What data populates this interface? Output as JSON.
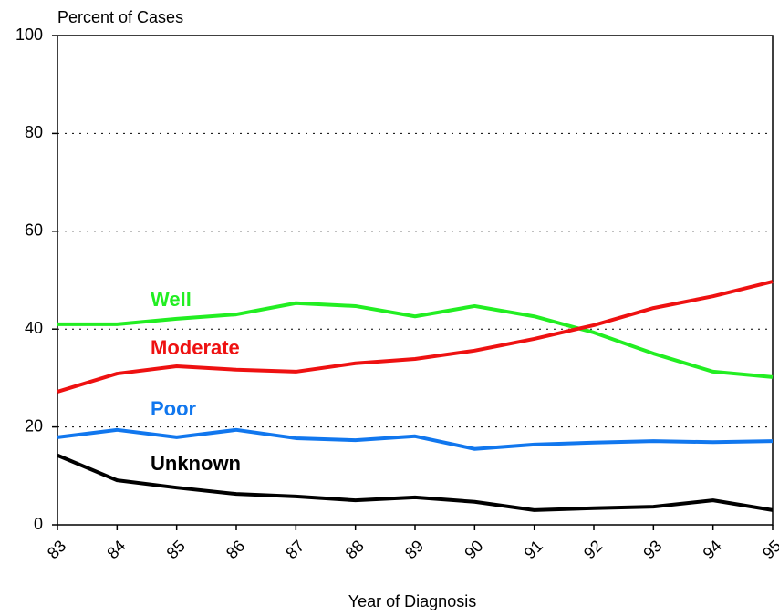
{
  "chart_data": {
    "type": "line",
    "y_axis_label": "Percent of Cases",
    "x_axis_label": "Year of Diagnosis",
    "categories": [
      "83",
      "84",
      "85",
      "86",
      "87",
      "88",
      "89",
      "90",
      "91",
      "92",
      "93",
      "94",
      "95"
    ],
    "series": [
      {
        "name": "Well",
        "color": "#22ee22",
        "values": [
          41,
          41,
          42.1,
          43,
          45.3,
          44.7,
          42.6,
          44.7,
          42.6,
          39.3,
          35,
          31.3,
          30.2
        ]
      },
      {
        "name": "Moderate",
        "color": "#ee1111",
        "values": [
          27.2,
          30.9,
          32.4,
          31.7,
          31.3,
          33,
          33.9,
          35.6,
          38,
          40.8,
          44.3,
          46.7,
          49.7
        ]
      },
      {
        "name": "Poor",
        "color": "#1177ee",
        "values": [
          17.9,
          19.4,
          17.9,
          19.4,
          17.7,
          17.3,
          18.1,
          15.5,
          16.4,
          16.8,
          17.1,
          16.9,
          17.1
        ]
      },
      {
        "name": "Unknown",
        "color": "#000000",
        "values": [
          14.2,
          9.1,
          7.6,
          6.3,
          5.8,
          5,
          5.6,
          4.7,
          3,
          3.4,
          3.7,
          5,
          3
        ]
      }
    ],
    "ylim": [
      0,
      100
    ],
    "yticks": [
      0,
      20,
      40,
      60,
      80,
      100
    ],
    "grid": true
  }
}
